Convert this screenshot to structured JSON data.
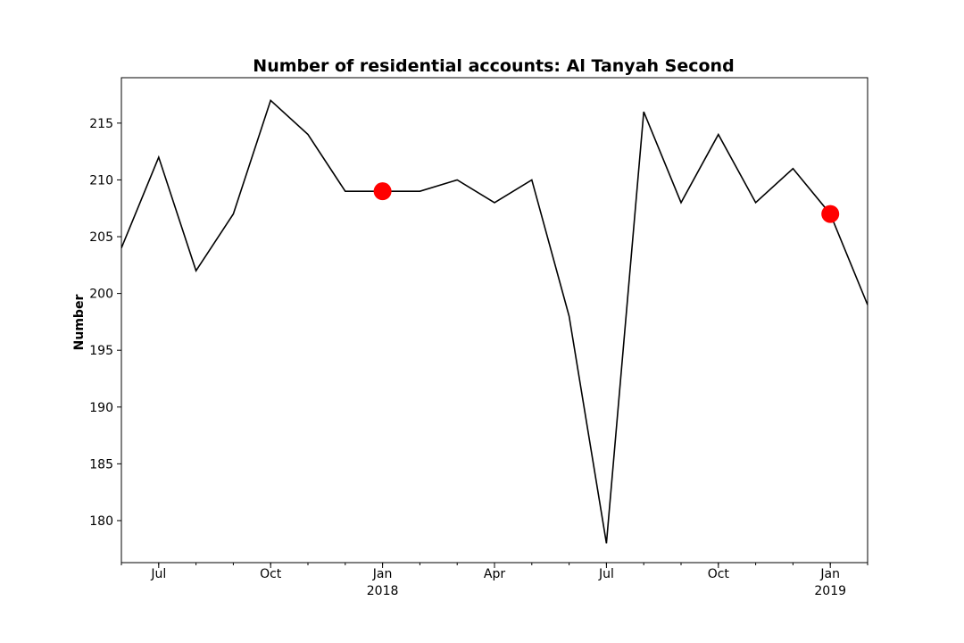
{
  "chart_data": {
    "type": "line",
    "title": "Number of residential accounts: Al Tanyah Second",
    "xlabel": "",
    "ylabel": "Number",
    "ylim": [
      176.3,
      219.0
    ],
    "grid": false,
    "legend": "none",
    "x": [
      "2017-06",
      "2017-07",
      "2017-08",
      "2017-09",
      "2017-10",
      "2017-11",
      "2017-12",
      "2018-01",
      "2018-02",
      "2018-03",
      "2018-04",
      "2018-05",
      "2018-06",
      "2018-07",
      "2018-08",
      "2018-09",
      "2018-10",
      "2018-11",
      "2018-12",
      "2019-01",
      "2019-02"
    ],
    "xlim": [
      "2017-06",
      "2019-02"
    ],
    "series": [
      {
        "values": [
          204,
          212,
          202,
          207,
          217,
          214,
          209,
          209,
          209,
          210,
          208,
          210,
          198,
          178,
          216,
          208,
          214,
          208,
          211,
          207,
          199
        ],
        "color": "#000000"
      }
    ],
    "highlights": [
      {
        "x": "2018-01",
        "y": 209,
        "color": "#ff0000"
      },
      {
        "x": "2019-01",
        "y": 207,
        "color": "#ff0000"
      }
    ],
    "y_ticks": [
      180,
      185,
      190,
      195,
      200,
      205,
      210,
      215
    ],
    "x_ticks": [
      {
        "x": "2017-07",
        "label": "Jul",
        "sublabel": ""
      },
      {
        "x": "2017-10",
        "label": "Oct",
        "sublabel": ""
      },
      {
        "x": "2018-01",
        "label": "Jan",
        "sublabel": "2018"
      },
      {
        "x": "2018-04",
        "label": "Apr",
        "sublabel": ""
      },
      {
        "x": "2018-07",
        "label": "Jul",
        "sublabel": ""
      },
      {
        "x": "2018-10",
        "label": "Oct",
        "sublabel": ""
      },
      {
        "x": "2019-01",
        "label": "Jan",
        "sublabel": "2019"
      }
    ]
  }
}
